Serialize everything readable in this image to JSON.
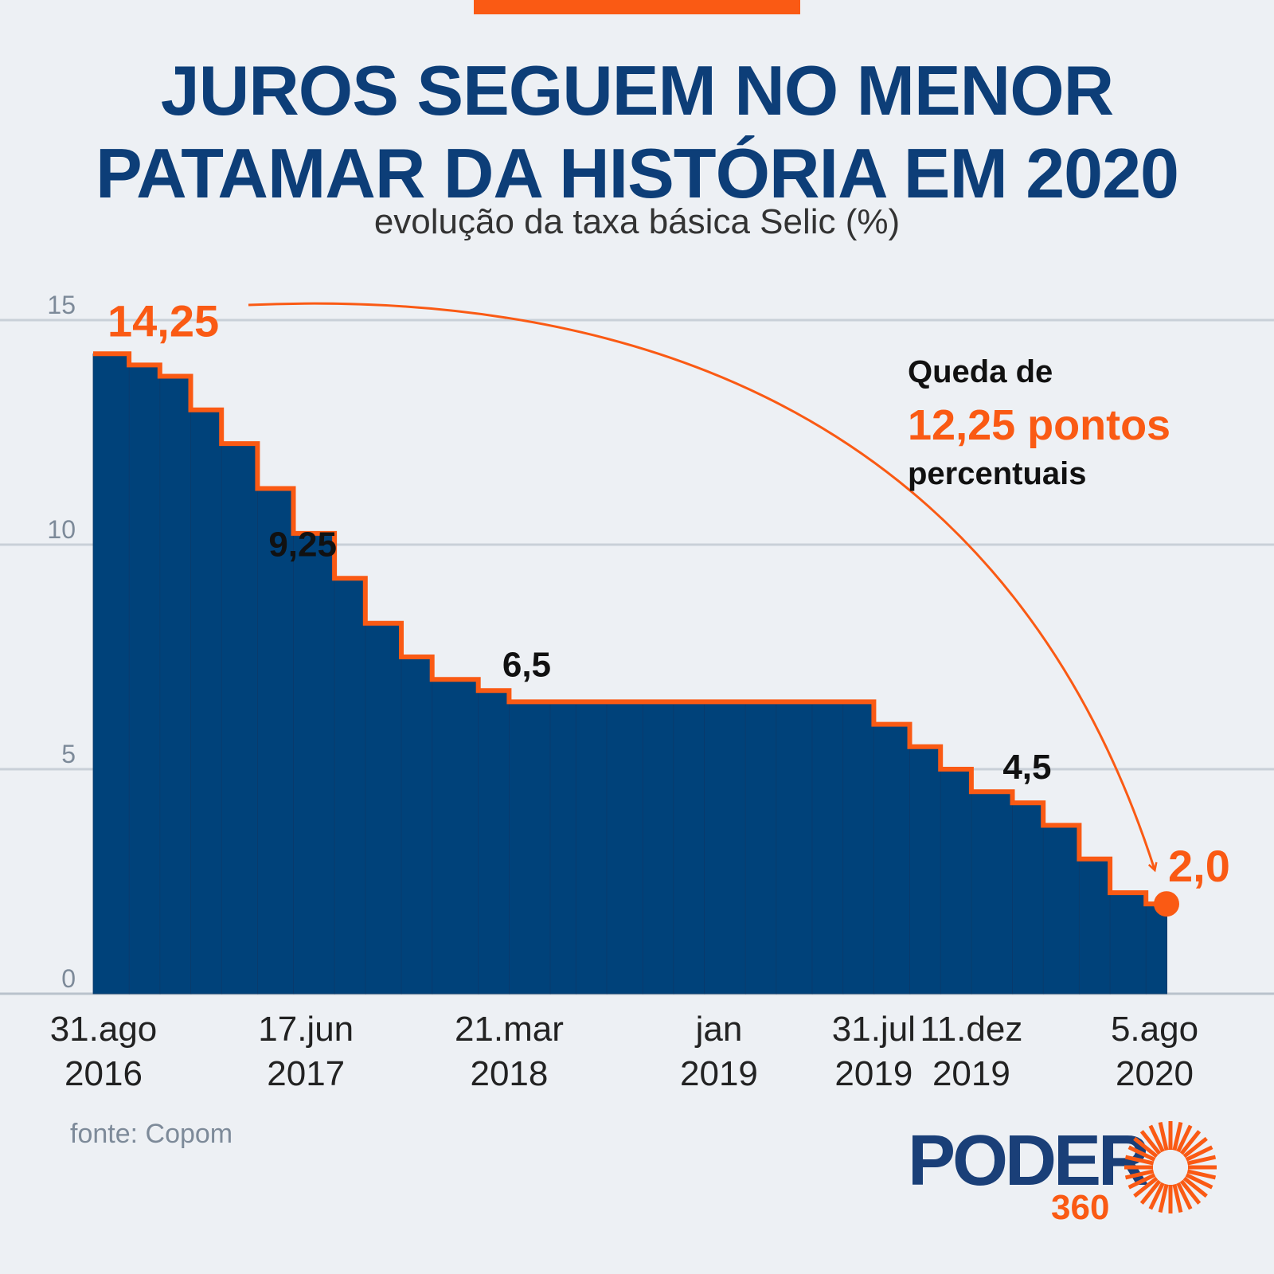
{
  "header": {
    "title_line1": "JUROS SEGUEM NO MENOR",
    "title_line2": "PATAMAR DA HISTÓRIA EM 2020",
    "subtitle": "evolução da taxa básica Selic (%)"
  },
  "chart_data": {
    "type": "area",
    "step": true,
    "ylim": [
      0,
      15
    ],
    "yticks": [
      "0",
      "5",
      "10",
      "15"
    ],
    "grid": true,
    "x": [
      "2016-08-31",
      "2016-10-19",
      "2016-11-30",
      "2017-01-11",
      "2017-02-22",
      "2017-04-12",
      "2017-05-31",
      "2017-07-26",
      "2017-09-06",
      "2017-10-25",
      "2017-12-06",
      "2018-02-07",
      "2018-03-21",
      "2018-05-16",
      "2018-06-20",
      "2018-08-01",
      "2018-09-19",
      "2018-10-31",
      "2018-12-12",
      "2019-02-06",
      "2019-03-20",
      "2019-05-08",
      "2019-06-19",
      "2019-07-31",
      "2019-09-18",
      "2019-10-30",
      "2019-12-11",
      "2020-02-05",
      "2020-03-18",
      "2020-05-06",
      "2020-06-17",
      "2020-08-05"
    ],
    "values": [
      14.25,
      14.0,
      13.75,
      13.0,
      12.25,
      11.25,
      10.25,
      9.25,
      8.25,
      7.5,
      7.0,
      6.75,
      6.5,
      6.5,
      6.5,
      6.5,
      6.5,
      6.5,
      6.5,
      6.5,
      6.5,
      6.5,
      6.5,
      6.0,
      5.5,
      5.0,
      4.5,
      4.25,
      3.75,
      3.0,
      2.25,
      2.0
    ],
    "x_labels": [
      {
        "date": "2016-08-31",
        "line1": "31.ago",
        "line2": "2016"
      },
      {
        "date": "2017-06-17",
        "line1": "17.jun",
        "line2": "2017"
      },
      {
        "date": "2018-03-21",
        "line1": "21.mar",
        "line2": "2018"
      },
      {
        "date": "2019-01-01",
        "line1": "jan",
        "line2": "2019"
      },
      {
        "date": "2019-07-31",
        "line1": "31.jul",
        "line2": "2019"
      },
      {
        "date": "2019-12-11",
        "line1": "11.dez",
        "line2": "2019"
      },
      {
        "date": "2020-08-05",
        "line1": "5.ago",
        "line2": "2020"
      }
    ],
    "annotations": [
      {
        "text": "14,25",
        "date": "2016-08-31",
        "value": 14.25,
        "highlight": true
      },
      {
        "text": "9,25",
        "date": "2017-07-26",
        "value": 9.25,
        "highlight": false
      },
      {
        "text": "6,5",
        "date": "2018-03-21",
        "value": 6.5,
        "highlight": false
      },
      {
        "text": "4,5",
        "date": "2019-12-11",
        "value": 4.5,
        "highlight": false
      },
      {
        "text": "2,0",
        "date": "2020-08-05",
        "value": 2.0,
        "highlight": true
      }
    ],
    "callout": {
      "line1": "Queda de",
      "line2": "12,25 pontos",
      "line3": "percentuais"
    },
    "colors": {
      "area": "#00427a",
      "line": "#fa5a14",
      "text": "#111111",
      "axis": "#7d8a99",
      "grid": "#c9d0d8"
    }
  },
  "footer": {
    "source": "fonte: Copom",
    "logo_word": "PODER",
    "logo_number": "360"
  }
}
